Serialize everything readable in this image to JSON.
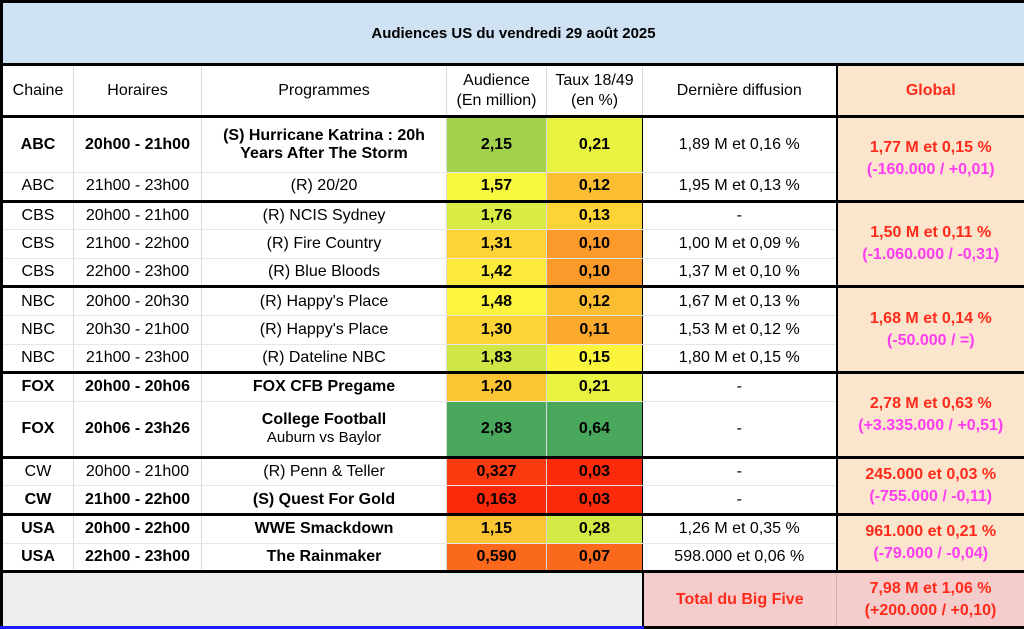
{
  "title": "Audiences US du vendredi 29 août 2025",
  "headers": {
    "chaine": "Chaine",
    "horaires": "Horaires",
    "programmes": "Programmes",
    "audience_l1": "Audience",
    "audience_l2": "(En million)",
    "taux_l1": "Taux 18/49",
    "taux_l2": "(en %)",
    "derniere": "Dernière diffusion",
    "global": "Global"
  },
  "colors": {
    "title_bg": "#cfe2f3",
    "global_bg": "#fce5cd",
    "global_text": "#ff2a1a",
    "diff_text": "#ff3df0",
    "total_bg": "#f4cccc"
  },
  "rows": [
    {
      "chaine": "ABC",
      "horaires": "20h00 - 21h00",
      "programme": "(S) Hurricane Katrina : 20h Years After The Storm",
      "audience": "2,15",
      "audience_color": "#a3d14b",
      "taux": "0,21",
      "taux_color": "#e8f241",
      "derniere": "1,89 M et 0,16 %",
      "bold": true
    },
    {
      "chaine": "ABC",
      "horaires": "21h00 - 23h00",
      "programme": "(R) 20/20",
      "audience": "1,57",
      "audience_color": "#f7f73d",
      "taux": "0,12",
      "taux_color": "#fbbd32",
      "derniere": "1,95 M et 0,13 %",
      "bold": false
    },
    {
      "chaine": "CBS",
      "horaires": "20h00 - 21h00",
      "programme": "(R) NCIS Sydney",
      "audience": "1,76",
      "audience_color": "#d9eb45",
      "taux": "0,13",
      "taux_color": "#fdd336",
      "derniere": "-",
      "bold": false
    },
    {
      "chaine": "CBS",
      "horaires": "21h00 - 22h00",
      "programme": "(R) Fire Country",
      "audience": "1,31",
      "audience_color": "#fdd336",
      "taux": "0,10",
      "taux_color": "#fb9a2b",
      "derniere": "1,00 M et 0,09 %",
      "bold": false
    },
    {
      "chaine": "CBS",
      "horaires": "22h00 - 23h00",
      "programme": "(R) Blue Bloods",
      "audience": "1,42",
      "audience_color": "#fbe93d",
      "taux": "0,10",
      "taux_color": "#fb9a2b",
      "derniere": "1,37 M et 0,10 %",
      "bold": false
    },
    {
      "chaine": "NBC",
      "horaires": "20h00 - 20h30",
      "programme": "(R) Happy's Place",
      "audience": "1,48",
      "audience_color": "#fcf43f",
      "taux": "0,12",
      "taux_color": "#fbbd32",
      "derniere": "1,67 M et 0,13 %",
      "bold": false
    },
    {
      "chaine": "NBC",
      "horaires": "20h30 - 21h00",
      "programme": "(R) Happy's Place",
      "audience": "1,30",
      "audience_color": "#fdd336",
      "taux": "0,11",
      "taux_color": "#fbaa2e",
      "derniere": "1,53 M et 0,12 %",
      "bold": false
    },
    {
      "chaine": "NBC",
      "horaires": "21h00 - 23h00",
      "programme": "(R) Dateline NBC",
      "audience": "1,83",
      "audience_color": "#d0e647",
      "taux": "0,15",
      "taux_color": "#fbf43d",
      "derniere": "1,80 M et 0,15 %",
      "bold": false
    },
    {
      "chaine": "FOX",
      "horaires": "20h00 - 20h06",
      "programme": "FOX CFB Pregame",
      "audience": "1,20",
      "audience_color": "#fcc534",
      "taux": "0,21",
      "taux_color": "#e8f241",
      "derniere": "-",
      "bold": true
    },
    {
      "chaine": "FOX",
      "horaires": "20h06 - 23h26",
      "programme": "College Football",
      "programme_sub": "Auburn vs Baylor",
      "audience": "2,83",
      "audience_color": "#4aa85c",
      "taux": "0,64",
      "taux_color": "#4aa85c",
      "derniere": "-",
      "bold": true
    },
    {
      "chaine": "CW",
      "horaires": "20h00 - 21h00",
      "programme": "(R) Penn & Teller",
      "audience": "0,327",
      "audience_color": "#fb3a10",
      "taux": "0,03",
      "taux_color": "#fb2a0a",
      "derniere": "-",
      "bold": false
    },
    {
      "chaine": "CW",
      "horaires": "21h00 - 22h00",
      "programme": "(S) Quest For Gold",
      "audience": "0,163",
      "audience_color": "#fb2a0a",
      "taux": "0,03",
      "taux_color": "#fb2a0a",
      "derniere": "-",
      "bold": true
    },
    {
      "chaine": "USA",
      "horaires": "20h00 - 22h00",
      "programme": "WWE Smackdown",
      "audience": "1,15",
      "audience_color": "#fcc534",
      "taux": "0,28",
      "taux_color": "#d4e946",
      "derniere": "1,26 M et 0,35 %",
      "bold": true
    },
    {
      "chaine": "USA",
      "horaires": "22h00 - 23h00",
      "programme": "The Rainmaker",
      "audience": "0,590",
      "audience_color": "#fb6a1c",
      "taux": "0,07",
      "taux_color": "#fb6a1c",
      "derniere": "598.000 et 0,06 %",
      "bold": true
    }
  ],
  "globals": {
    "abc": {
      "main": "1,77 M et 0,15 %",
      "diff": "(-160.000 / +0,01)"
    },
    "cbs": {
      "main": "1,50 M et 0,11 %",
      "diff": "(-1.060.000 / -0,31)"
    },
    "nbc": {
      "main": "1,68 M et 0,14 %",
      "diff": "(-50.000 / =)"
    },
    "fox": {
      "main": "2,78 M et 0,63 %",
      "diff": "(+3.335.000 / +0,51)"
    },
    "cw": {
      "main": "245.000 et 0,03 %",
      "diff": "(-755.000 / -0,11)"
    },
    "usa": {
      "main": "961.000 et 0,21 %",
      "diff": "(-79.000 / -0,04)"
    }
  },
  "total": {
    "label": "Total du Big Five",
    "main": "7,98 M et 1,06 %",
    "diff": "(+200.000 / +0,10)"
  }
}
